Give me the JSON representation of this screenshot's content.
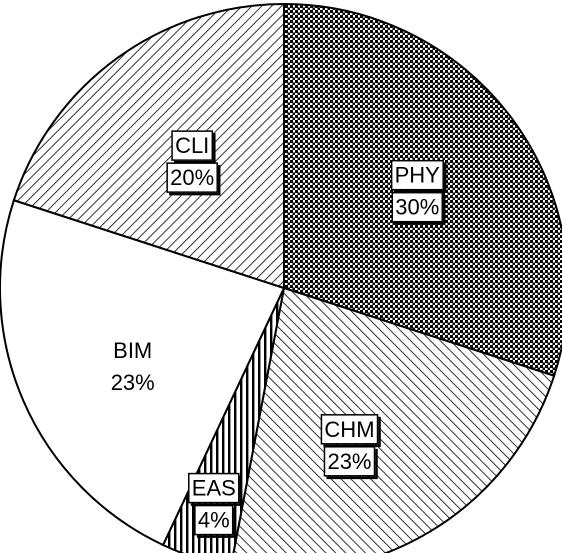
{
  "chart_data": {
    "type": "pie",
    "slices": [
      {
        "label": "PHY",
        "percent_label": "30%",
        "value": 30,
        "pattern": "dots",
        "boxed": true
      },
      {
        "label": "CHM",
        "percent_label": "23%",
        "value": 23,
        "pattern": "hatch-back",
        "boxed": true
      },
      {
        "label": "EAS",
        "percent_label": "4%",
        "value": 4,
        "pattern": "vertical",
        "boxed": true
      },
      {
        "label": "BIM",
        "percent_label": "23%",
        "value": 23,
        "pattern": "none",
        "boxed": false
      },
      {
        "label": "CLI",
        "percent_label": "20%",
        "value": 20,
        "pattern": "hatch-forward",
        "boxed": true
      }
    ],
    "legend": "none",
    "colors": {
      "ink": "#000000",
      "paper": "#ffffff"
    }
  }
}
